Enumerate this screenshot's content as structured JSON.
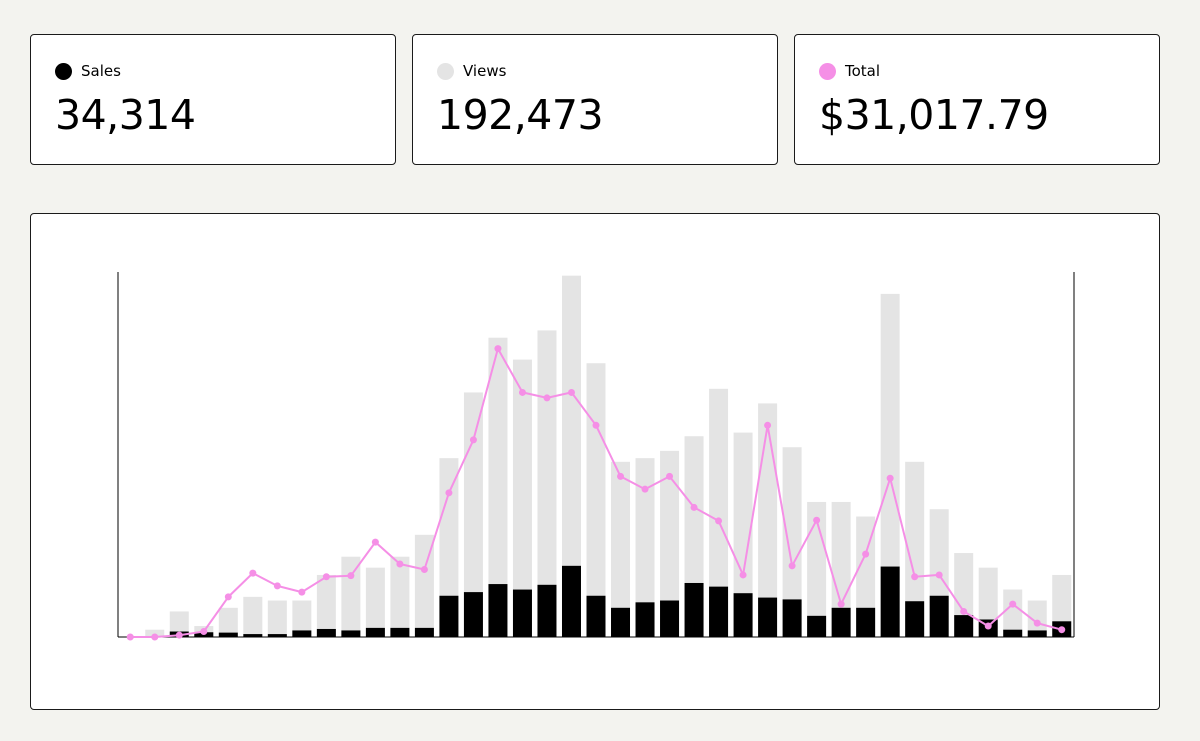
{
  "stats": [
    {
      "label": "Sales",
      "value": "34,314",
      "color": "#000000"
    },
    {
      "label": "Views",
      "value": "192,473",
      "color": "#e4e4e4"
    },
    {
      "label": "Total",
      "value": "$31,017.79",
      "color": "#f58fe6"
    }
  ],
  "chart_data": {
    "type": "bar",
    "title": "",
    "xlabel": "",
    "ylabel": "",
    "grid": false,
    "legend": "none",
    "x": [
      1,
      2,
      3,
      4,
      5,
      6,
      7,
      8,
      9,
      10,
      11,
      12,
      13,
      14,
      15,
      16,
      17,
      18,
      19,
      20,
      21,
      22,
      23,
      24,
      25,
      26,
      27,
      28,
      29,
      30,
      31,
      32,
      33,
      34,
      35,
      36,
      37,
      38,
      39
    ],
    "ylim": [
      0,
      100
    ],
    "series": [
      {
        "name": "Views",
        "type": "bar",
        "color": "#e4e4e4",
        "values": [
          0,
          2,
          7,
          3,
          8,
          11,
          10,
          10,
          17,
          22,
          19,
          22,
          28,
          49,
          67,
          82,
          76,
          84,
          99,
          75,
          48,
          49,
          51,
          55,
          68,
          56,
          64,
          52,
          37,
          37,
          33,
          94,
          48,
          35,
          23,
          19,
          13,
          10,
          17
        ]
      },
      {
        "name": "Sales",
        "type": "bar",
        "color": "#000000",
        "values": [
          0,
          0,
          1.5,
          1.3,
          1.2,
          0.8,
          0.8,
          1.8,
          2.2,
          1.8,
          2.5,
          2.5,
          2.5,
          11.3,
          12.3,
          14.5,
          13,
          14.3,
          19.5,
          11.3,
          8,
          9.5,
          10,
          14.8,
          13.8,
          12,
          10.8,
          10.3,
          5.8,
          8,
          8,
          19.3,
          9.8,
          11.3,
          6,
          4.8,
          2,
          1.8,
          4.3
        ]
      },
      {
        "name": "Total",
        "type": "line",
        "color": "#f58fe6",
        "values": [
          0,
          0,
          0.5,
          1.5,
          11,
          17.5,
          14,
          12.3,
          16.5,
          16.8,
          26,
          20,
          18.5,
          39.5,
          54,
          79,
          67,
          65.5,
          67,
          58,
          44,
          40.5,
          44,
          35.5,
          31.8,
          17,
          58,
          19.5,
          32,
          9,
          22.7,
          43.5,
          16.5,
          17,
          7,
          3,
          9,
          3.8,
          2
        ]
      }
    ]
  }
}
